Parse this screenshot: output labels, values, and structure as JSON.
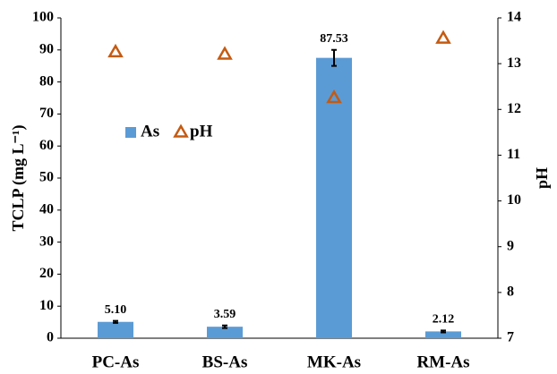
{
  "chart_data": {
    "type": "bar",
    "categories": [
      "PC-As",
      "BS-As",
      "MK-As",
      "RM-As"
    ],
    "y_label": "TCLP (mg L⁻¹)",
    "y2_label": "pH",
    "ylim": [
      0,
      100
    ],
    "yticks": [
      0,
      10,
      20,
      30,
      40,
      50,
      60,
      70,
      80,
      90,
      100
    ],
    "y2lim": [
      7,
      14
    ],
    "y2ticks": [
      7,
      8,
      9,
      10,
      11,
      12,
      13,
      14
    ],
    "grid": false,
    "legend": "center left",
    "series": [
      {
        "name": "As",
        "color": "#5b9bd5",
        "values": [
          5.1,
          3.59,
          87.53,
          2.12
        ],
        "value_labels": [
          "5.10",
          "3.59",
          "87.53",
          "2.12"
        ],
        "errors": [
          0.3,
          0.4,
          2.5,
          0.3
        ]
      },
      {
        "name": "pH",
        "color": "#c55a11",
        "axis": "y2",
        "marker": "triangle",
        "values": [
          13.25,
          13.2,
          12.25,
          13.55
        ]
      }
    ]
  }
}
